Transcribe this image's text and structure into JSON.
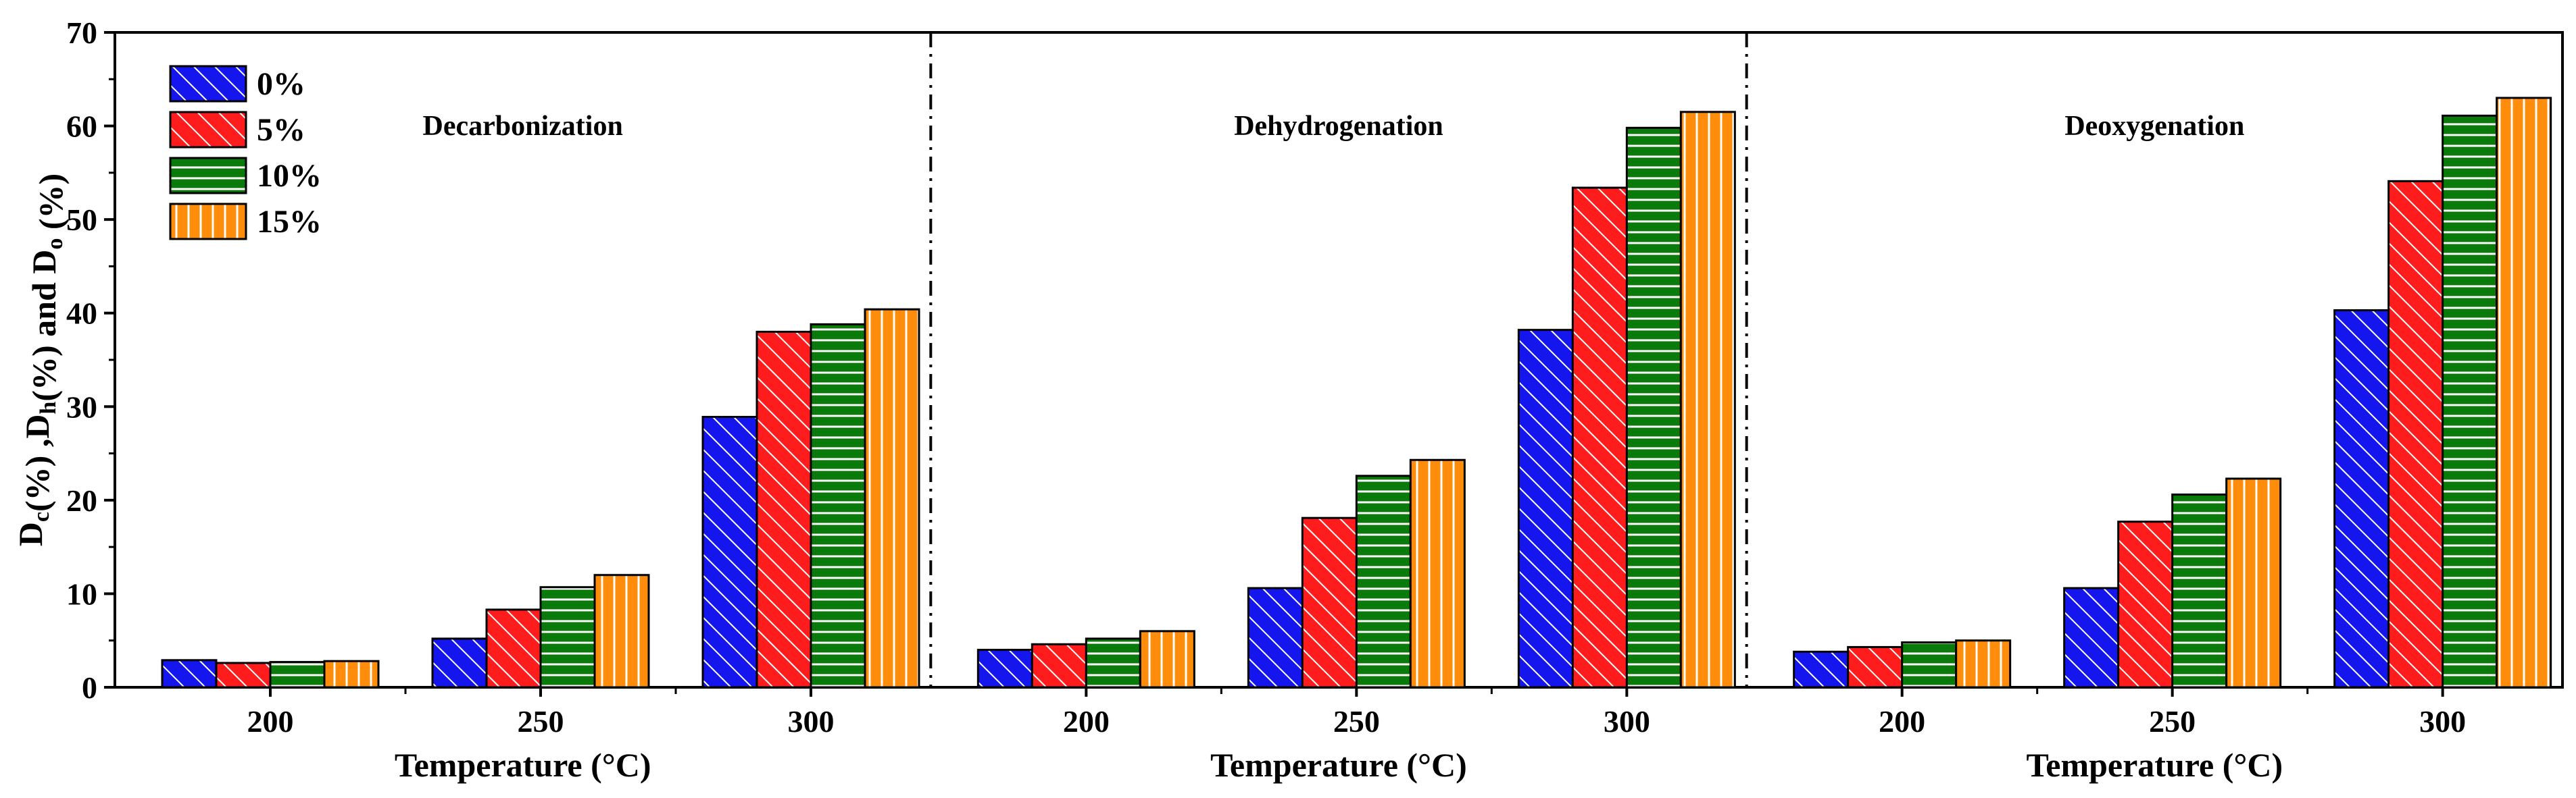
{
  "chart_data": {
    "type": "bar",
    "ylabel": "D_c(%) ,D_h(%) and D_o (%)",
    "ylim": [
      0,
      70
    ],
    "yticks": [
      "0",
      "10",
      "20",
      "30",
      "40",
      "50",
      "60",
      "70"
    ],
    "xlabel": "Temperature (°C)",
    "categories": [
      "200",
      "250",
      "300"
    ],
    "series_meta": [
      {
        "name": "0%",
        "color": "#1515ee",
        "pattern": "diagonal"
      },
      {
        "name": "5%",
        "color": "#ff1c1c",
        "pattern": "diagonal"
      },
      {
        "name": "10%",
        "color": "#0a7a0a",
        "pattern": "horizontal"
      },
      {
        "name": "15%",
        "color": "#ff8c0a",
        "pattern": "vertical"
      }
    ],
    "panels": [
      {
        "title": "Decarbonization",
        "xlabel": "Temperature (°C)",
        "series": [
          {
            "name": "0%",
            "values": [
              2.9,
              5.2,
              28.9
            ]
          },
          {
            "name": "5%",
            "values": [
              2.6,
              8.3,
              38.0
            ]
          },
          {
            "name": "10%",
            "values": [
              2.7,
              10.7,
              38.8
            ]
          },
          {
            "name": "15%",
            "values": [
              2.8,
              12.0,
              40.4
            ]
          }
        ]
      },
      {
        "title": "Dehydrogenation",
        "xlabel": "Temperature (°C)",
        "series": [
          {
            "name": "0%",
            "values": [
              4.0,
              10.6,
              38.2
            ]
          },
          {
            "name": "5%",
            "values": [
              4.6,
              18.1,
              53.4
            ]
          },
          {
            "name": "10%",
            "values": [
              5.2,
              22.6,
              59.8
            ]
          },
          {
            "name": "15%",
            "values": [
              6.0,
              24.3,
              61.5
            ]
          }
        ]
      },
      {
        "title": "Deoxygenation",
        "xlabel": "Temperature (°C)",
        "series": [
          {
            "name": "0%",
            "values": [
              3.8,
              10.6,
              40.3
            ]
          },
          {
            "name": "5%",
            "values": [
              4.3,
              17.7,
              54.1
            ]
          },
          {
            "name": "10%",
            "values": [
              4.8,
              20.6,
              61.1
            ]
          },
          {
            "name": "15%",
            "values": [
              5.0,
              22.3,
              63.0
            ]
          }
        ]
      }
    ]
  }
}
